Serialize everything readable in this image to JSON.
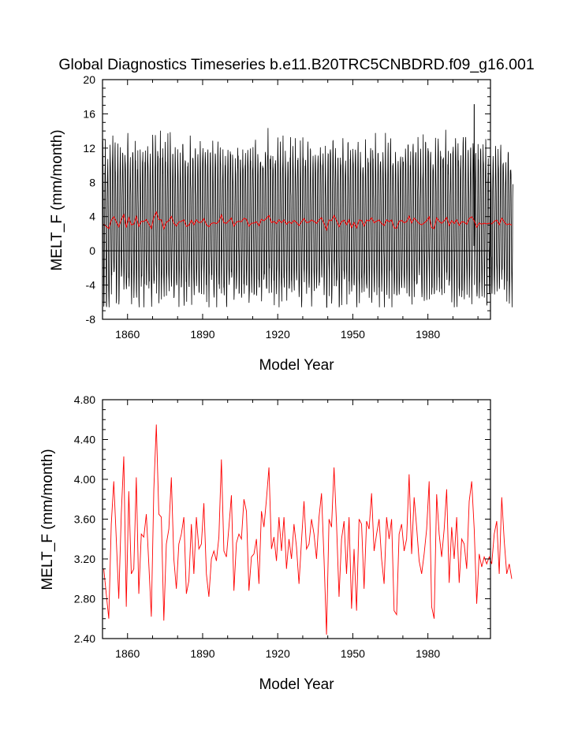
{
  "title": "Global Diagnostics Timeseries b.e11.B20TRC5CNBDRD.f09_g16.001",
  "chart_data": [
    {
      "type": "line",
      "xlabel": "Model Year",
      "ylabel": "MELT_F (mm/month)",
      "xlim": [
        1850,
        2005
      ],
      "ylim": [
        -8,
        20
      ],
      "xticks": [
        1860,
        1890,
        1920,
        1950,
        1980
      ],
      "yticks": [
        -8,
        -4,
        0,
        4,
        8,
        12,
        16,
        20
      ],
      "ytick_labels": [
        "-8",
        "-4",
        "0",
        "4",
        "8",
        "12",
        "16",
        "20"
      ],
      "zero_line": true,
      "series": [
        {
          "color": "#000000",
          "description_key": "monthly",
          "summary": "monthly values oscillating between about -6 and 14 mm/month, peak about 17 near 1998",
          "mean": 3.3,
          "amplitude": 8.5,
          "peak": {
            "x": 1998,
            "y": 17.1
          }
        },
        {
          "color": "#ff0000",
          "description_key": "annual",
          "source": "annual_series"
        }
      ]
    },
    {
      "type": "line",
      "xlabel": "Model Year",
      "ylabel": "MELT_F (mm/month)",
      "xlim": [
        1850,
        2005
      ],
      "ylim": [
        2.4,
        4.8
      ],
      "xticks": [
        1860,
        1890,
        1920,
        1950,
        1980
      ],
      "yticks": [
        2.4,
        2.8,
        3.2,
        3.6,
        4.0,
        4.4,
        4.8
      ],
      "ytick_labels": [
        "2.40",
        "2.80",
        "3.20",
        "3.60",
        "4.00",
        "4.40",
        "4.80"
      ],
      "series": [
        {
          "color": "#ff0000",
          "x_start": 1850,
          "x_step": 1,
          "values": [
            3.1,
            2.85,
            2.6,
            3.55,
            3.98,
            3.4,
            2.8,
            3.65,
            4.23,
            2.72,
            3.88,
            3.05,
            3.1,
            4.02,
            2.85,
            3.45,
            3.42,
            3.65,
            3.15,
            2.62,
            3.9,
            4.55,
            3.65,
            3.62,
            2.58,
            3.35,
            3.5,
            4.02,
            3.2,
            2.9,
            3.35,
            3.45,
            3.62,
            2.85,
            2.98,
            3.55,
            3.05,
            3.62,
            3.3,
            3.35,
            3.76,
            3.05,
            2.82,
            3.2,
            3.28,
            3.18,
            3.42,
            4.2,
            3.28,
            3.22,
            3.52,
            3.84,
            2.88,
            3.36,
            3.45,
            3.4,
            3.8,
            3.68,
            2.88,
            3.22,
            3.25,
            3.4,
            2.95,
            3.68,
            3.52,
            3.8,
            4.12,
            3.3,
            3.42,
            3.18,
            3.62,
            3.28,
            3.62,
            3.1,
            3.4,
            3.2,
            3.55,
            3.32,
            2.95,
            3.38,
            3.78,
            3.3,
            3.35,
            3.6,
            3.45,
            3.2,
            3.62,
            3.86,
            3.2,
            2.44,
            3.6,
            3.52,
            4.12,
            3.55,
            2.82,
            3.4,
            3.58,
            3.05,
            3.62,
            2.7,
            3.3,
            2.68,
            3.6,
            3.55,
            2.9,
            3.58,
            3.5,
            3.86,
            3.28,
            3.45,
            3.6,
            3.2,
            2.95,
            3.62,
            3.4,
            3.6,
            2.68,
            2.64,
            3.45,
            3.55,
            3.28,
            3.4,
            4.05,
            3.25,
            3.82,
            3.52,
            3.18,
            3.05,
            3.25,
            3.5,
            3.98,
            2.72,
            2.6,
            3.85,
            3.45,
            3.22,
            3.5,
            3.9,
            2.96,
            3.52,
            3.2,
            3.62,
            2.96,
            3.4,
            3.35,
            3.1,
            3.78,
            3.98,
            3.5,
            2.75,
            3.25,
            3.12,
            3.22,
            3.15,
            3.22,
            3.15,
            3.45,
            3.58,
            3.05,
            3.82,
            3.38,
            3.05,
            3.15,
            3.0
          ]
        }
      ]
    }
  ]
}
